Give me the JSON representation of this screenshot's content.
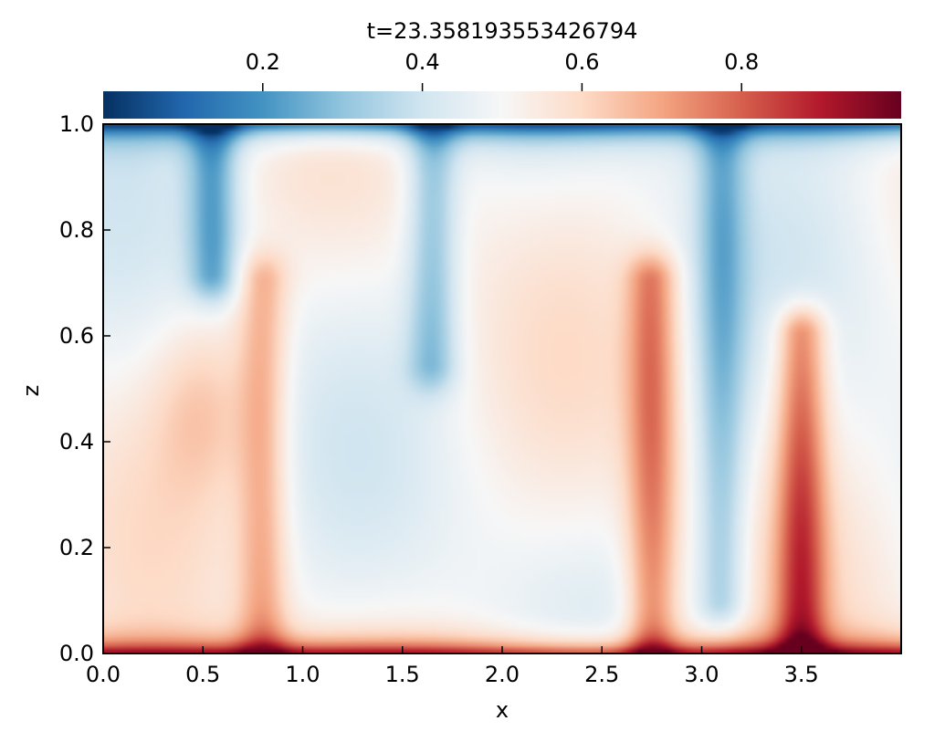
{
  "chart_data": {
    "type": "heatmap",
    "title": "t=23.358193553426794",
    "xlabel": "x",
    "ylabel": "z",
    "xlim": [
      0,
      4
    ],
    "ylim": [
      0,
      1
    ],
    "x_ticks": [
      0.0,
      0.5,
      1.0,
      1.5,
      2.0,
      2.5,
      3.0,
      3.5
    ],
    "x_tick_labels": [
      "0.0",
      "0.5",
      "1.0",
      "1.5",
      "2.0",
      "2.5",
      "3.0",
      "3.5"
    ],
    "y_ticks": [
      0.0,
      0.2,
      0.4,
      0.6,
      0.8,
      1.0
    ],
    "y_tick_labels": [
      "0.0",
      "0.2",
      "0.4",
      "0.6",
      "0.8",
      "1.0"
    ],
    "colorbar": {
      "location": "top",
      "cmap": "RdBu_r",
      "range": [
        0,
        1
      ],
      "ticks": [
        0.2,
        0.4,
        0.6,
        0.8
      ],
      "tick_labels": [
        "0.2",
        "0.4",
        "0.6",
        "0.8"
      ]
    },
    "grid": false,
    "field_structures": [
      {
        "kind": "hot boundary layer",
        "x_range": [
          0,
          4
        ],
        "z_range": [
          0,
          0.04
        ],
        "value": 0.95
      },
      {
        "kind": "cold boundary layer",
        "x_range": [
          0,
          4
        ],
        "z_range": [
          0.96,
          1.0
        ],
        "value": 0.05
      },
      {
        "kind": "cold plume",
        "x": 0.55,
        "z_range": [
          0.72,
          1.0
        ],
        "value": 0.25
      },
      {
        "kind": "cold plume",
        "x": 1.65,
        "z_range": [
          0.55,
          1.0
        ],
        "value": 0.3
      },
      {
        "kind": "cold plume",
        "x": 3.1,
        "z_range": [
          0.1,
          1.0
        ],
        "value": 0.3
      },
      {
        "kind": "hot plume",
        "x": 0.8,
        "z_range": [
          0.0,
          0.7
        ],
        "value": 0.68
      },
      {
        "kind": "hot plume",
        "x": 2.75,
        "z_range": [
          0.0,
          0.7
        ],
        "value": 0.75
      },
      {
        "kind": "hot plume",
        "x": 3.5,
        "z_range": [
          0.0,
          0.6
        ],
        "value": 0.8
      },
      {
        "kind": "warm blob",
        "x": 0.5,
        "z": 0.47,
        "value": 0.62
      }
    ],
    "colors": {
      "cmap_stops": [
        "#053061",
        "#2166ac",
        "#4393c3",
        "#92c5de",
        "#d1e5f0",
        "#f7f7f7",
        "#fddbc7",
        "#f4a582",
        "#d6604d",
        "#b2182b",
        "#67001f"
      ]
    }
  }
}
